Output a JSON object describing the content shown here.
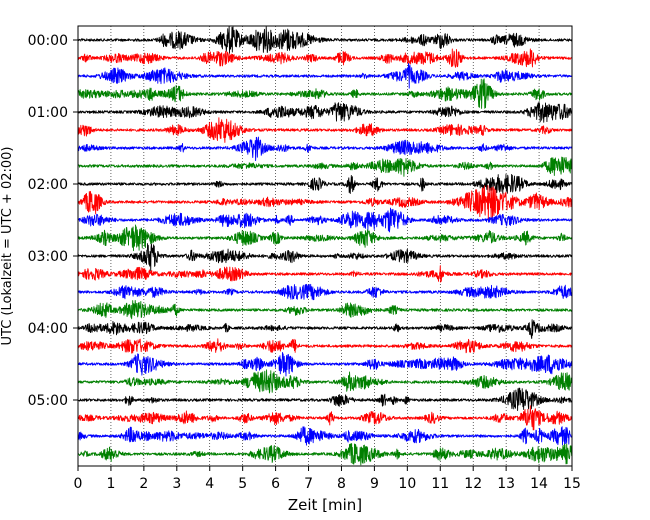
{
  "chart_data": {
    "type": "line",
    "title": "",
    "xlabel": "Zeit  [min]",
    "ylabel": "UTC (Lokalzeit = UTC + 02:00)",
    "xlim": [
      0,
      15
    ],
    "x_ticks": [
      "0",
      "1",
      "2",
      "3",
      "4",
      "5",
      "6",
      "7",
      "8",
      "9",
      "10",
      "11",
      "12",
      "13",
      "14",
      "15"
    ],
    "y_tick_labels": [
      "00:00",
      "01:00",
      "02:00",
      "03:00",
      "04:00",
      "05:00"
    ],
    "grid": "vertical dotted",
    "trace_interval_minutes": 15,
    "trace_start_times": [
      "00:00",
      "00:15",
      "00:30",
      "00:45",
      "01:00",
      "01:15",
      "01:30",
      "01:45",
      "02:00",
      "02:15",
      "02:30",
      "02:45",
      "03:00",
      "03:15",
      "03:30",
      "03:45",
      "04:00",
      "04:15",
      "04:30",
      "04:45",
      "05:00",
      "05:15",
      "05:30",
      "05:45"
    ],
    "colors": [
      "#000000",
      "#ff0000",
      "#0000ff",
      "#008000"
    ]
  }
}
